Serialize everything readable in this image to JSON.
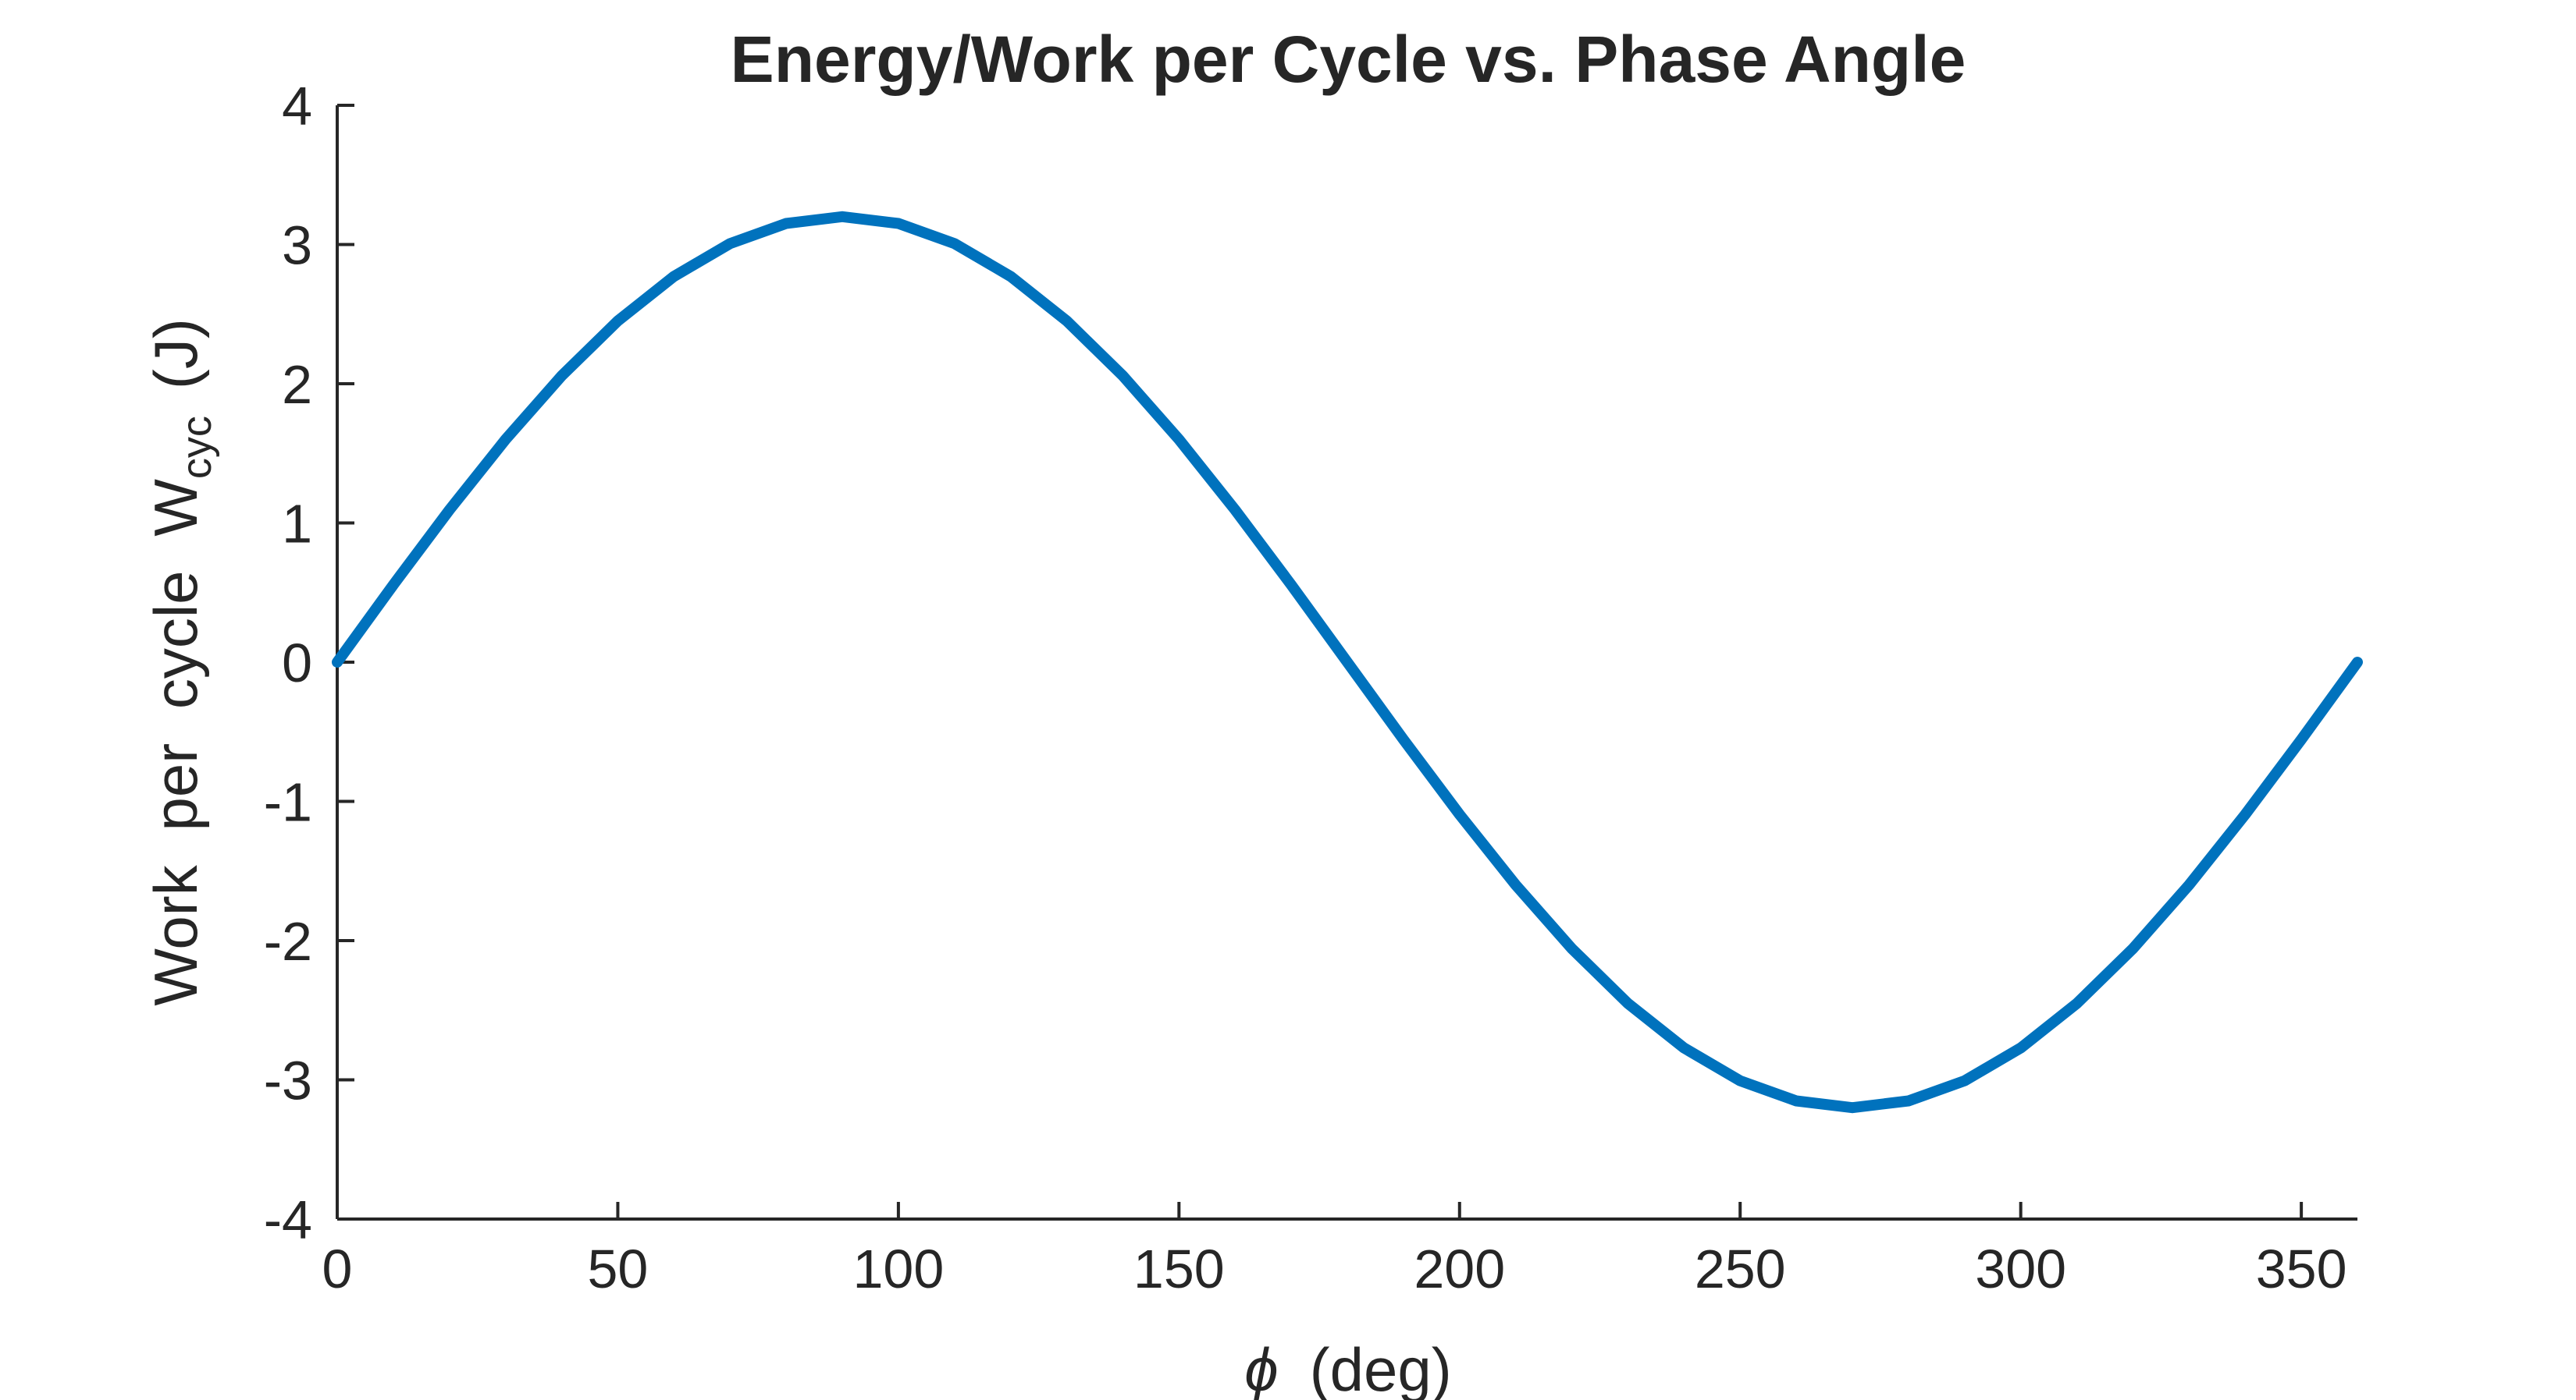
{
  "chart_data": {
    "type": "line",
    "title": "Energy/Work per Cycle vs. Phase Angle",
    "xlabel": {
      "symbol": "ϕ",
      "text": "(deg)"
    },
    "ylabel": {
      "text": "Work per cycle W",
      "subscript": "cyc",
      "unit": "(J)"
    },
    "xlim": [
      0,
      360
    ],
    "ylim": [
      -4,
      4
    ],
    "xticks": [
      0,
      50,
      100,
      150,
      200,
      250,
      300,
      350
    ],
    "xtick_labels": [
      "0",
      "50",
      "100",
      "150",
      "200",
      "250",
      "300",
      "350"
    ],
    "yticks": [
      -4,
      -3,
      -2,
      -1,
      0,
      1,
      2,
      3,
      4
    ],
    "ytick_labels": [
      "-4",
      "-3",
      "-2",
      "-1",
      "0",
      "1",
      "2",
      "3",
      "4"
    ],
    "grid": false,
    "series": [
      {
        "color": "#0072BD",
        "x": [
          0,
          10,
          20,
          30,
          40,
          50,
          60,
          70,
          80,
          90,
          100,
          110,
          120,
          130,
          140,
          150,
          160,
          170,
          180,
          190,
          200,
          210,
          220,
          230,
          240,
          250,
          260,
          270,
          280,
          290,
          300,
          310,
          320,
          330,
          340,
          350,
          360
        ],
        "y": [
          0,
          0.556,
          1.094,
          1.6,
          2.057,
          2.451,
          2.771,
          3.007,
          3.151,
          3.2,
          3.151,
          3.007,
          2.771,
          2.451,
          2.057,
          1.6,
          1.094,
          0.556,
          0,
          -0.556,
          -1.094,
          -1.6,
          -2.057,
          -2.451,
          -2.771,
          -3.007,
          -3.151,
          -3.2,
          -3.151,
          -3.007,
          -2.771,
          -2.451,
          -2.057,
          -1.6,
          -1.094,
          -0.556,
          0
        ]
      }
    ]
  }
}
